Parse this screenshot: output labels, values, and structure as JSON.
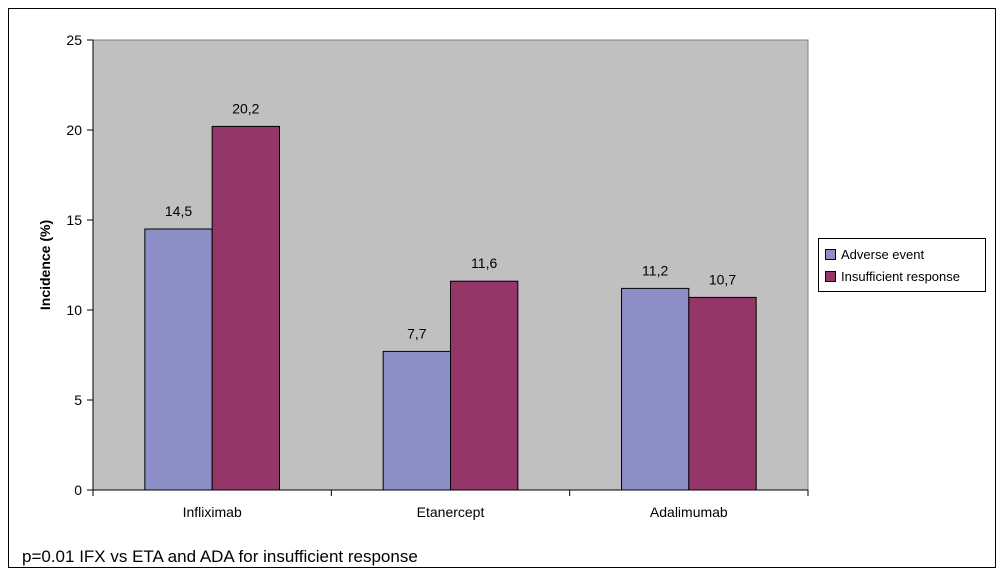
{
  "chart_data": {
    "type": "bar",
    "categories": [
      "Infliximab",
      "Etanercept",
      "Adalimumab"
    ],
    "series": [
      {
        "name": "Adverse event",
        "values": [
          14.5,
          7.7,
          11.2
        ],
        "labels": [
          "14,5",
          "7,7",
          "11,2"
        ],
        "color": "#8b8fc6"
      },
      {
        "name": "Insufficient response",
        "values": [
          20.2,
          11.6,
          10.7
        ],
        "labels": [
          "20,2",
          "11,6",
          "10,7"
        ],
        "color": "#943668"
      }
    ],
    "title": "",
    "xlabel": "",
    "ylabel": "Incidence (%)",
    "ylim": [
      0,
      25
    ],
    "yticks": [
      0,
      5,
      10,
      15,
      20,
      25
    ],
    "grid": false,
    "plot_background": "#c0c0c0",
    "legend_position": "right"
  },
  "footnote": "p=0.01 IFX vs ETA and ADA for insufficient response"
}
